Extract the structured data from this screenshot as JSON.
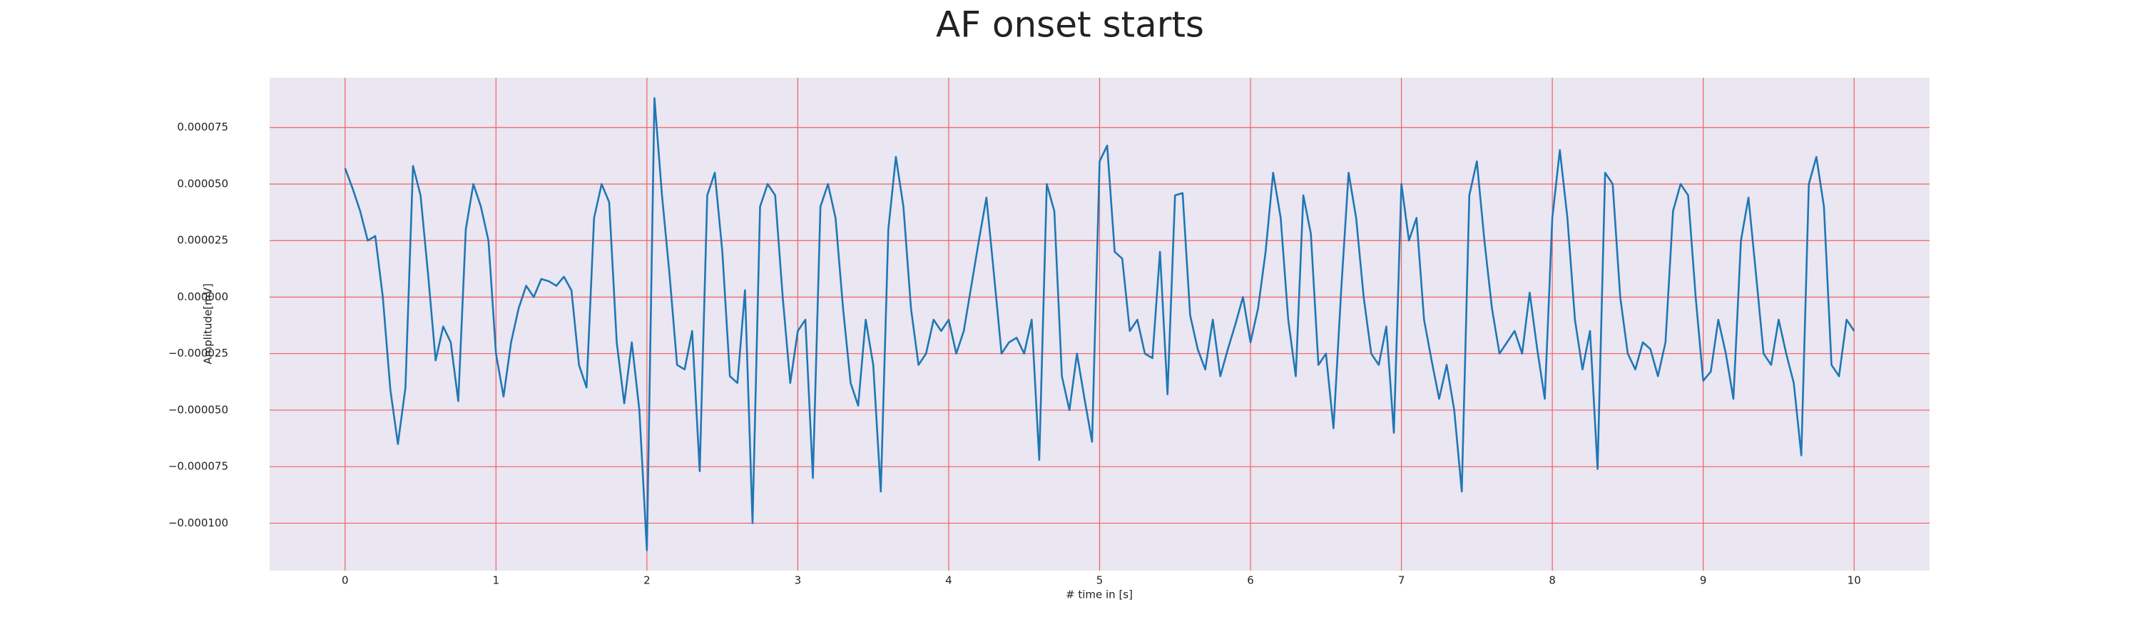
{
  "chart_data": {
    "type": "line",
    "title": "AF onset starts",
    "xlabel": "# time in [s]",
    "ylabel": "Amplitude[mV]",
    "color": "#1f77b4",
    "grid": true,
    "xlim": [
      -0.5,
      10.5
    ],
    "xticks": [
      0,
      1,
      2,
      3,
      4,
      5,
      6,
      7,
      8,
      9,
      10
    ],
    "ylim": [
      -0.000121,
      9.7e-05
    ],
    "yticks": [
      {
        "value": -0.0001,
        "label": "−0.000100"
      },
      {
        "value": -7.5e-05,
        "label": "−0.000075"
      },
      {
        "value": -5e-05,
        "label": "−0.000050"
      },
      {
        "value": -2.5e-05,
        "label": "−0.000025"
      },
      {
        "value": 0,
        "label": "0.000000"
      },
      {
        "value": 2.5e-05,
        "label": "0.000025"
      },
      {
        "value": 5e-05,
        "label": "0.000050"
      },
      {
        "value": 7.5e-05,
        "label": "0.000075"
      }
    ],
    "x": [
      0,
      0.05,
      0.1,
      0.15,
      0.2,
      0.25,
      0.3,
      0.35,
      0.4,
      0.45,
      0.5,
      0.55,
      0.6,
      0.65,
      0.7,
      0.75,
      0.8,
      0.85,
      0.9,
      0.95,
      1,
      1.05,
      1.1,
      1.15,
      1.2,
      1.25,
      1.3,
      1.35,
      1.4,
      1.45,
      1.5,
      1.55,
      1.6,
      1.65,
      1.7,
      1.75,
      1.8,
      1.85,
      1.9,
      1.95,
      2,
      2.05,
      2.1,
      2.15,
      2.2,
      2.25,
      2.3,
      2.35,
      2.4,
      2.45,
      2.5,
      2.55,
      2.6,
      2.65,
      2.7,
      2.75,
      2.8,
      2.85,
      2.9,
      2.95,
      3,
      3.05,
      3.1,
      3.15,
      3.2,
      3.25,
      3.3,
      3.35,
      3.4,
      3.45,
      3.5,
      3.55,
      3.6,
      3.65,
      3.7,
      3.75,
      3.8,
      3.85,
      3.9,
      3.95,
      4,
      4.05,
      4.1,
      4.15,
      4.2,
      4.25,
      4.3,
      4.35,
      4.4,
      4.45,
      4.5,
      4.55,
      4.6,
      4.65,
      4.7,
      4.75,
      4.8,
      4.85,
      4.9,
      4.95,
      5,
      5.05,
      5.1,
      5.15,
      5.2,
      5.25,
      5.3,
      5.35,
      5.4,
      5.45,
      5.5,
      5.55,
      5.6,
      5.65,
      5.7,
      5.75,
      5.8,
      5.85,
      5.9,
      5.95,
      6,
      6.05,
      6.1,
      6.15,
      6.2,
      6.25,
      6.3,
      6.35,
      6.4,
      6.45,
      6.5,
      6.55,
      6.6,
      6.65,
      6.7,
      6.75,
      6.8,
      6.85,
      6.9,
      6.95,
      7,
      7.05,
      7.1,
      7.15,
      7.2,
      7.25,
      7.3,
      7.35,
      7.4,
      7.45,
      7.5,
      7.55,
      7.6,
      7.65,
      7.7,
      7.75,
      7.8,
      7.85,
      7.9,
      7.95,
      8,
      8.05,
      8.1,
      8.15,
      8.2,
      8.25,
      8.3,
      8.35,
      8.4,
      8.45,
      8.5,
      8.55,
      8.6,
      8.65,
      8.7,
      8.75,
      8.8,
      8.85,
      8.9,
      8.95,
      9,
      9.05,
      9.1,
      9.15,
      9.2,
      9.25,
      9.3,
      9.35,
      9.4,
      9.45,
      9.5,
      9.55,
      9.6,
      9.65,
      9.7,
      9.75,
      9.8,
      9.85,
      9.9,
      9.95,
      10
    ],
    "values": [
      5.7e-05,
      4.8e-05,
      3.8e-05,
      2.5e-05,
      2.7e-05,
      0,
      -4.1e-05,
      -6.5e-05,
      -4e-05,
      5.8e-05,
      4.5e-05,
      1e-05,
      -2.8e-05,
      -1.3e-05,
      -2e-05,
      -4.6e-05,
      3e-05,
      5e-05,
      4e-05,
      2.5e-05,
      -2.5e-05,
      -4.4e-05,
      -2e-05,
      -5e-06,
      5e-06,
      0,
      8e-06,
      7e-06,
      5e-06,
      9e-06,
      3e-06,
      -3e-05,
      -4e-05,
      3.5e-05,
      5e-05,
      4.2e-05,
      -2e-05,
      -4.7e-05,
      -2e-05,
      -5e-05,
      -0.000112,
      8.8e-05,
      4.5e-05,
      1e-05,
      -3e-05,
      -3.2e-05,
      -1.5e-05,
      -7.7e-05,
      4.5e-05,
      5.5e-05,
      2e-05,
      -3.5e-05,
      -3.8e-05,
      3e-06,
      -0.0001,
      4e-05,
      5e-05,
      4.5e-05,
      0,
      -3.8e-05,
      -1.5e-05,
      -1e-05,
      -8e-05,
      4e-05,
      5e-05,
      3.5e-05,
      -5e-06,
      -3.8e-05,
      -4.8e-05,
      -1e-05,
      -3e-05,
      -8.6e-05,
      3e-05,
      6.2e-05,
      4e-05,
      -5e-06,
      -3e-05,
      -2.5e-05,
      -1e-05,
      -1.5e-05,
      -1e-05,
      -2.5e-05,
      -1.5e-05,
      5e-06,
      2.5e-05,
      4.4e-05,
      1e-05,
      -2.5e-05,
      -2e-05,
      -1.8e-05,
      -2.5e-05,
      -1e-05,
      -7.2e-05,
      5e-05,
      3.8e-05,
      -3.5e-05,
      -5e-05,
      -2.5e-05,
      -4.5e-05,
      -6.4e-05,
      6e-05,
      6.7e-05,
      2e-05,
      1.7e-05,
      -1.5e-05,
      -1e-05,
      -2.5e-05,
      -2.7e-05,
      2e-05,
      -4.3e-05,
      4.5e-05,
      4.6e-05,
      -8e-06,
      -2.3e-05,
      -3.2e-05,
      -1e-05,
      -3.5e-05,
      -2.3e-05,
      -1.2e-05,
      0,
      -2e-05,
      -5e-06,
      2e-05,
      5.5e-05,
      3.5e-05,
      -1e-05,
      -3.5e-05,
      4.5e-05,
      2.8e-05,
      -3e-05,
      -2.5e-05,
      -5.8e-05,
      2e-06,
      5.5e-05,
      3.5e-05,
      0,
      -2.5e-05,
      -3e-05,
      -1.3e-05,
      -6e-05,
      5e-05,
      2.5e-05,
      3.5e-05,
      -1e-05,
      -2.8e-05,
      -4.5e-05,
      -3e-05,
      -5e-05,
      -8.6e-05,
      4.5e-05,
      6e-05,
      2.5e-05,
      -5e-06,
      -2.5e-05,
      -2e-05,
      -1.5e-05,
      -2.5e-05,
      2e-06,
      -2.3e-05,
      -4.5e-05,
      3.5e-05,
      6.5e-05,
      3.5e-05,
      -1e-05,
      -3.2e-05,
      -1.5e-05,
      -7.6e-05,
      5.5e-05,
      5e-05,
      0,
      -2.5e-05,
      -3.2e-05,
      -2e-05,
      -2.3e-05,
      -3.5e-05,
      -2e-05,
      3.8e-05,
      5e-05,
      4.5e-05,
      0,
      -3.7e-05,
      -3.3e-05,
      -1e-05,
      -2.5e-05,
      -4.5e-05,
      2.5e-05,
      4.4e-05,
      1e-05,
      -2.5e-05,
      -3e-05,
      -1e-05,
      -2.5e-05,
      -3.8e-05,
      -7e-05,
      5e-05,
      6.2e-05,
      4e-05,
      -3e-05,
      -3.5e-05,
      -1e-05,
      -1.5e-05
    ]
  }
}
